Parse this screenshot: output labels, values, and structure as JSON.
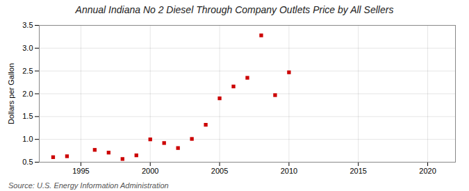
{
  "chart_data": {
    "type": "scatter",
    "title": "Annual Indiana No 2 Diesel Through Company Outlets Price by All Sellers",
    "ylabel": "Dollars per Gallon",
    "source": "Source: U.S. Energy Information Administration",
    "x": [
      1993,
      1994,
      1996,
      1997,
      1998,
      1999,
      2000,
      2001,
      2002,
      2003,
      2004,
      2005,
      2006,
      2007,
      2008,
      2009,
      2010
    ],
    "values": [
      0.61,
      0.63,
      0.77,
      0.71,
      0.57,
      0.65,
      1.0,
      0.92,
      0.81,
      1.01,
      1.32,
      1.9,
      2.16,
      2.35,
      3.28,
      1.97,
      2.47
    ],
    "color": "#cc0000",
    "marker": "square",
    "xlim": [
      1992,
      2022
    ],
    "ylim": [
      0.5,
      3.5
    ],
    "xticks": [
      1995,
      2000,
      2005,
      2010,
      2015,
      2020
    ],
    "yticks": [
      0.5,
      {
        "value": 1.0,
        "label": "1.0"
      },
      1.5,
      {
        "value": 2.0,
        "label": "2.0"
      },
      2.5,
      {
        "value": 3.0,
        "label": "3.0"
      },
      3.5
    ],
    "grid": true
  }
}
